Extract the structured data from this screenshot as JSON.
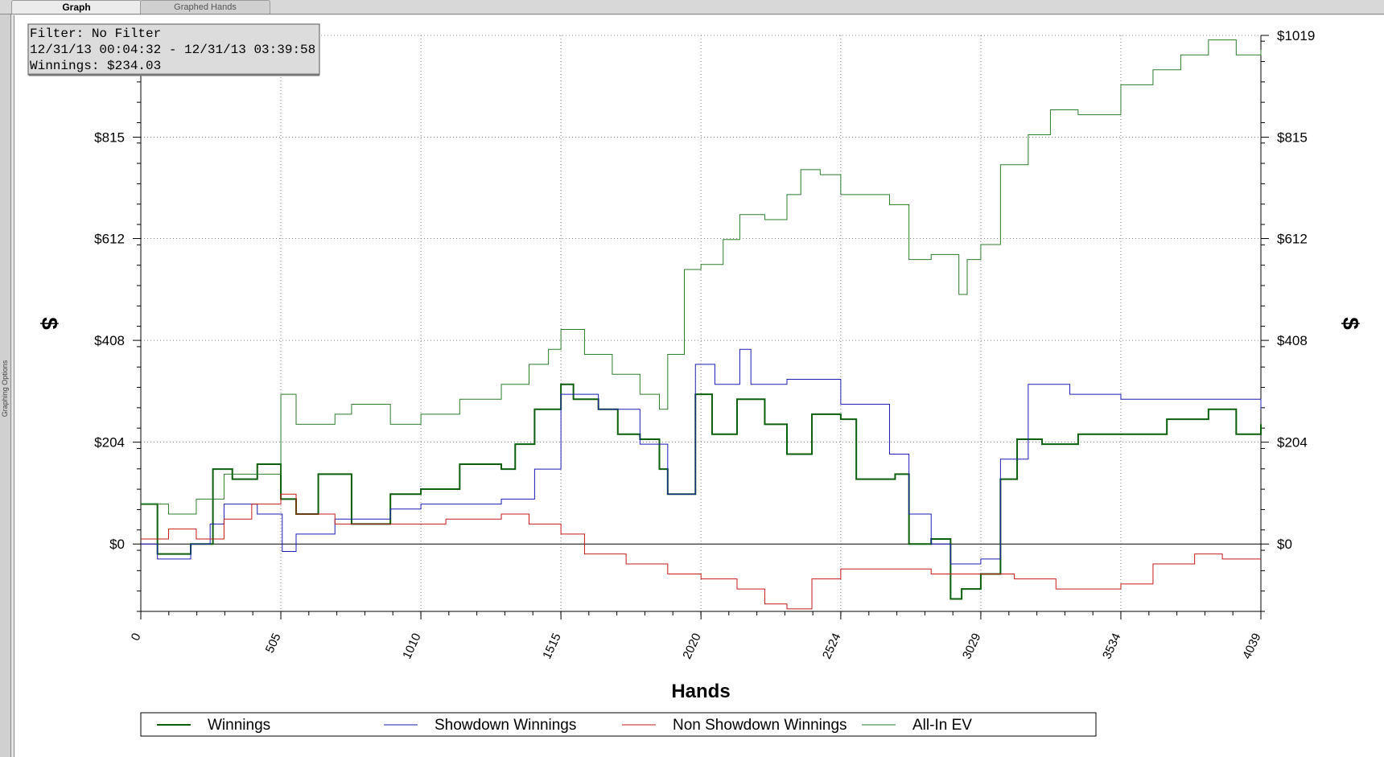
{
  "tabs": [
    {
      "label": "Graph"
    },
    {
      "label": "Graphed Hands"
    }
  ],
  "side_tab": {
    "label": "Graphing Options"
  },
  "info_box": {
    "filter": "Filter: No Filter",
    "range": "12/31/13 00:04:32 - 12/31/13 03:39:58",
    "winnings": "Winnings: $234.03"
  },
  "chart_data": {
    "type": "line",
    "xlabel": "Hands",
    "ylabel": "$",
    "xlim": [
      0,
      4039
    ],
    "ylim": [
      -135,
      1019
    ],
    "x_ticks": [
      0,
      505,
      1010,
      1515,
      2020,
      2524,
      3029,
      3534,
      4039
    ],
    "y_ticks": [
      0,
      204,
      408,
      612,
      815,
      1019
    ],
    "x_tick_labels": [
      "0",
      "505",
      "1010",
      "1515",
      "2020",
      "2524",
      "3029",
      "3534",
      "4039"
    ],
    "y_tick_labels": [
      "$0",
      "$204",
      "$408",
      "$612",
      "$815",
      "$1019"
    ],
    "grid": true,
    "legend_position": "bottom",
    "series": [
      {
        "name": "Winnings",
        "color": "#0b5e0b",
        "width": 2,
        "x": [
          0,
          60,
          180,
          260,
          330,
          420,
          505,
          560,
          640,
          760,
          900,
          1010,
          1150,
          1300,
          1350,
          1420,
          1515,
          1560,
          1650,
          1720,
          1800,
          1870,
          1900,
          2000,
          2060,
          2150,
          2250,
          2330,
          2420,
          2524,
          2580,
          2720,
          2770,
          2850,
          2920,
          2960,
          3029,
          3100,
          3160,
          3250,
          3380,
          3534,
          3700,
          3850,
          3950,
          4039
        ],
        "y": [
          80,
          -20,
          0,
          150,
          130,
          160,
          90,
          60,
          140,
          40,
          100,
          110,
          160,
          150,
          200,
          270,
          320,
          290,
          270,
          220,
          210,
          150,
          100,
          300,
          220,
          290,
          240,
          180,
          260,
          250,
          130,
          140,
          0,
          10,
          -110,
          -90,
          -60,
          130,
          210,
          200,
          220,
          220,
          250,
          270,
          220,
          240
        ]
      },
      {
        "name": "Showdown Winnings",
        "color": "#1c1cb4",
        "width": 1,
        "x": [
          0,
          60,
          180,
          250,
          300,
          420,
          510,
          560,
          700,
          900,
          1010,
          1300,
          1420,
          1515,
          1650,
          1800,
          1900,
          2000,
          2070,
          2160,
          2200,
          2330,
          2524,
          2700,
          2770,
          2850,
          2920,
          3029,
          3100,
          3200,
          3350,
          3534,
          3800,
          4039
        ],
        "y": [
          0,
          -30,
          0,
          40,
          80,
          60,
          -15,
          20,
          50,
          70,
          80,
          90,
          150,
          300,
          270,
          200,
          100,
          360,
          320,
          390,
          320,
          330,
          280,
          180,
          60,
          0,
          -40,
          -30,
          170,
          320,
          300,
          290,
          290,
          270
        ]
      },
      {
        "name": "Non Showdown Winnings",
        "color": "#c41a1a",
        "width": 1,
        "x": [
          0,
          100,
          200,
          300,
          400,
          505,
          560,
          700,
          900,
          1100,
          1300,
          1400,
          1515,
          1600,
          1750,
          1900,
          2020,
          2150,
          2250,
          2330,
          2420,
          2524,
          2700,
          2850,
          3029,
          3150,
          3300,
          3400,
          3534,
          3650,
          3800,
          3900,
          4039
        ],
        "y": [
          10,
          30,
          10,
          50,
          80,
          100,
          60,
          40,
          40,
          50,
          60,
          40,
          20,
          -20,
          -40,
          -60,
          -70,
          -90,
          -120,
          -130,
          -70,
          -50,
          -50,
          -60,
          -60,
          -70,
          -90,
          -90,
          -80,
          -40,
          -20,
          -30,
          -30
        ]
      },
      {
        "name": "All-In EV",
        "color": "#2d7a2d",
        "width": 1,
        "x": [
          0,
          100,
          200,
          300,
          400,
          505,
          560,
          700,
          760,
          900,
          1010,
          1150,
          1300,
          1400,
          1470,
          1515,
          1600,
          1700,
          1800,
          1870,
          1900,
          1960,
          2020,
          2100,
          2160,
          2250,
          2330,
          2380,
          2450,
          2524,
          2600,
          2700,
          2770,
          2850,
          2950,
          2980,
          3029,
          3100,
          3200,
          3280,
          3380,
          3534,
          3650,
          3750,
          3850,
          3950,
          4039
        ],
        "y": [
          80,
          60,
          90,
          140,
          140,
          300,
          240,
          260,
          280,
          240,
          260,
          290,
          320,
          360,
          390,
          430,
          380,
          340,
          300,
          270,
          380,
          550,
          560,
          610,
          660,
          650,
          700,
          750,
          740,
          700,
          700,
          680,
          570,
          580,
          500,
          570,
          600,
          760,
          820,
          870,
          860,
          920,
          950,
          980,
          1010,
          980,
          990
        ]
      }
    ]
  }
}
